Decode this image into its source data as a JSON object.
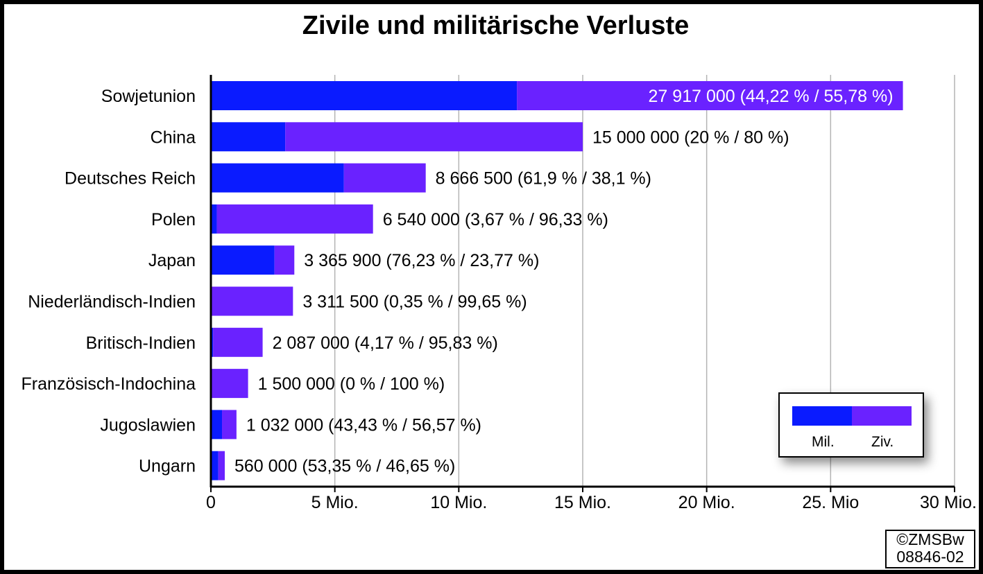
{
  "chart_data": {
    "type": "bar",
    "orientation": "horizontal",
    "stacked": true,
    "title": "Zivile und militärische Verluste",
    "categories": [
      "Sowjetunion",
      "China",
      "Deutsches Reich",
      "Polen",
      "Japan",
      "Niederländisch-Indien",
      "Britisch-Indien",
      "Französisch-Indochina",
      "Jugoslawien",
      "Ungarn"
    ],
    "totals": [
      27917000,
      15000000,
      8666500,
      6540000,
      3365900,
      3311500,
      2087000,
      1500000,
      1032000,
      560000
    ],
    "series": [
      {
        "name": "Mil.",
        "color": "#0a1bff",
        "values": [
          12344897,
          3000000,
          5364564,
          240018,
          2565826,
          11590,
          87028,
          0,
          448198,
          298760
        ]
      },
      {
        "name": "Ziv.",
        "color": "#6a22ff",
        "values": [
          15572103,
          12000000,
          3301936,
          6299982,
          800074,
          3299910,
          1999972,
          1500000,
          583802,
          261240
        ]
      }
    ],
    "data_labels": [
      "27 917 000 (44,22 % / 55,78 %)",
      "15 000 000 (20 % / 80 %)",
      "8 666 500 (61,9 % / 38,1 %)",
      "6 540 000 (3,67 % / 96,33 %)",
      "3 365 900 (76,23 % / 23,77 %)",
      "3 311 500 (0,35 % / 99,65 %)",
      "2 087 000 (4,17 % / 95,83 %)",
      "1 500 000 (0 % / 100 %)",
      "1 032 000 (43,43 % / 56,57 %)",
      "560 000 (53,35 % / 46,65 %)"
    ],
    "x_ticks": [
      0,
      5000000,
      10000000,
      15000000,
      20000000,
      25000000,
      30000000
    ],
    "x_tick_labels": [
      "0",
      "5 Mio.",
      "10 Mio.",
      "15 Mio.",
      "20 Mio.",
      "25. Mio",
      "30 Mio."
    ],
    "xlim": [
      0,
      30000000
    ],
    "grid": "vertical",
    "legend_position": "bottom-right",
    "background": "#ffffff",
    "axis_color": "#000000",
    "grid_color": "#b4b4b4"
  },
  "legend": {
    "mil_label": "Mil.",
    "ziv_label": "Ziv."
  },
  "credit": {
    "line1": "©ZMSBw",
    "line2": "08846-02"
  }
}
